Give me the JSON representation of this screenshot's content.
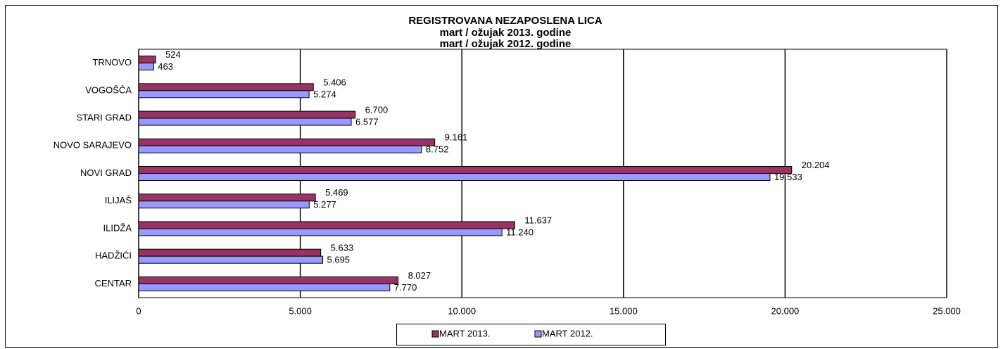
{
  "chart_data": {
    "type": "hbar",
    "title": "REGISTROVANA NEZAPOSLENA LICA",
    "subtitles": [
      "mart / ožujak 2013. godine",
      "mart / ožujak 2012. godine"
    ],
    "categories": [
      "TRNOVO",
      "VOGOŠĆA",
      "STARI GRAD",
      "NOVO SARAJEVO",
      "NOVI GRAD",
      "ILIJAŠ",
      "ILIDŽA",
      "HADŽIĆI",
      "CENTAR"
    ],
    "series": [
      {
        "name": "MART 2013.",
        "color": "#993366",
        "values": [
          524,
          5406,
          6700,
          9161,
          20204,
          5469,
          11637,
          5633,
          8027
        ],
        "value_labels": [
          "524",
          "5.406",
          "6.700",
          "9.161",
          "20.204",
          "5.469",
          "11.637",
          "5.633",
          "8.027"
        ]
      },
      {
        "name": "MART 2012.",
        "color": "#9999ff",
        "values": [
          463,
          5274,
          6577,
          8752,
          19533,
          5277,
          11240,
          5695,
          7770
        ],
        "value_labels": [
          "463",
          "5.274",
          "6.577",
          "8.752",
          "19.533",
          "5.277",
          "11.240",
          "5.695",
          "7.770"
        ]
      }
    ],
    "xlim": [
      0,
      25000
    ],
    "xticks": [
      0,
      {
        "value": 5000,
        "label": "5.000"
      },
      {
        "value": 10000,
        "label": "10.000"
      },
      {
        "value": 15000,
        "label": "15.000"
      },
      {
        "value": 20000,
        "label": "20.000"
      },
      {
        "value": 25000,
        "label": "25.000"
      }
    ],
    "grid": true,
    "legend": "bottom"
  }
}
